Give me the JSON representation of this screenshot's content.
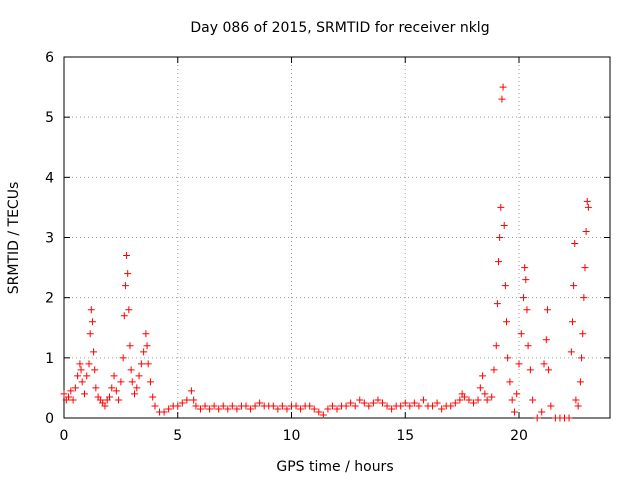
{
  "chart_data": {
    "type": "scatter",
    "title": "Day 086 of 2015, SRMTID for receiver nklg",
    "xlabel": "GPS time / hours",
    "ylabel": "SRMTID / TECUs",
    "xlim": [
      0,
      24
    ],
    "ylim": [
      0,
      6
    ],
    "xticks": [
      0,
      5,
      10,
      15,
      20
    ],
    "yticks": [
      0,
      1,
      2,
      3,
      4,
      5,
      6
    ],
    "grid": true,
    "marker": "+",
    "color": "#ff0000",
    "series": [
      {
        "name": "SRMTID",
        "points": [
          [
            0.0,
            0.4
          ],
          [
            0.1,
            0.3
          ],
          [
            0.2,
            0.35
          ],
          [
            0.3,
            0.45
          ],
          [
            0.4,
            0.3
          ],
          [
            0.5,
            0.5
          ],
          [
            0.6,
            0.7
          ],
          [
            0.7,
            0.9
          ],
          [
            0.75,
            0.8
          ],
          [
            0.8,
            0.6
          ],
          [
            0.9,
            0.4
          ],
          [
            1.0,
            0.7
          ],
          [
            1.1,
            0.9
          ],
          [
            1.15,
            1.4
          ],
          [
            1.2,
            1.8
          ],
          [
            1.25,
            1.6
          ],
          [
            1.3,
            1.1
          ],
          [
            1.35,
            0.8
          ],
          [
            1.4,
            0.5
          ],
          [
            1.5,
            0.35
          ],
          [
            1.6,
            0.3
          ],
          [
            1.7,
            0.25
          ],
          [
            1.8,
            0.2
          ],
          [
            1.9,
            0.3
          ],
          [
            2.0,
            0.35
          ],
          [
            2.1,
            0.5
          ],
          [
            2.2,
            0.7
          ],
          [
            2.3,
            0.45
          ],
          [
            2.4,
            0.3
          ],
          [
            2.5,
            0.6
          ],
          [
            2.6,
            1.0
          ],
          [
            2.65,
            1.7
          ],
          [
            2.7,
            2.2
          ],
          [
            2.75,
            2.7
          ],
          [
            2.8,
            2.4
          ],
          [
            2.85,
            1.8
          ],
          [
            2.9,
            1.2
          ],
          [
            2.95,
            0.8
          ],
          [
            3.0,
            0.6
          ],
          [
            3.1,
            0.4
          ],
          [
            3.2,
            0.5
          ],
          [
            3.3,
            0.7
          ],
          [
            3.4,
            0.9
          ],
          [
            3.5,
            1.1
          ],
          [
            3.6,
            1.4
          ],
          [
            3.65,
            1.2
          ],
          [
            3.7,
            0.9
          ],
          [
            3.8,
            0.6
          ],
          [
            3.9,
            0.35
          ],
          [
            4.0,
            0.2
          ],
          [
            4.2,
            0.1
          ],
          [
            4.4,
            0.1
          ],
          [
            4.6,
            0.15
          ],
          [
            4.8,
            0.2
          ],
          [
            5.0,
            0.2
          ],
          [
            5.2,
            0.25
          ],
          [
            5.4,
            0.3
          ],
          [
            5.6,
            0.45
          ],
          [
            5.7,
            0.3
          ],
          [
            5.8,
            0.2
          ],
          [
            6.0,
            0.15
          ],
          [
            6.2,
            0.2
          ],
          [
            6.4,
            0.15
          ],
          [
            6.6,
            0.2
          ],
          [
            6.8,
            0.15
          ],
          [
            7.0,
            0.2
          ],
          [
            7.2,
            0.15
          ],
          [
            7.4,
            0.2
          ],
          [
            7.6,
            0.15
          ],
          [
            7.8,
            0.2
          ],
          [
            8.0,
            0.2
          ],
          [
            8.2,
            0.15
          ],
          [
            8.4,
            0.2
          ],
          [
            8.6,
            0.25
          ],
          [
            8.8,
            0.2
          ],
          [
            9.0,
            0.2
          ],
          [
            9.2,
            0.2
          ],
          [
            9.4,
            0.15
          ],
          [
            9.6,
            0.2
          ],
          [
            9.8,
            0.15
          ],
          [
            10.0,
            0.2
          ],
          [
            10.2,
            0.2
          ],
          [
            10.4,
            0.15
          ],
          [
            10.6,
            0.2
          ],
          [
            10.8,
            0.2
          ],
          [
            11.0,
            0.15
          ],
          [
            11.2,
            0.1
          ],
          [
            11.4,
            0.05
          ],
          [
            11.6,
            0.15
          ],
          [
            11.8,
            0.2
          ],
          [
            12.0,
            0.15
          ],
          [
            12.2,
            0.2
          ],
          [
            12.4,
            0.2
          ],
          [
            12.6,
            0.25
          ],
          [
            12.8,
            0.2
          ],
          [
            13.0,
            0.3
          ],
          [
            13.2,
            0.25
          ],
          [
            13.4,
            0.2
          ],
          [
            13.6,
            0.25
          ],
          [
            13.8,
            0.3
          ],
          [
            14.0,
            0.25
          ],
          [
            14.2,
            0.2
          ],
          [
            14.4,
            0.15
          ],
          [
            14.6,
            0.2
          ],
          [
            14.8,
            0.2
          ],
          [
            15.0,
            0.25
          ],
          [
            15.2,
            0.2
          ],
          [
            15.4,
            0.25
          ],
          [
            15.6,
            0.2
          ],
          [
            15.8,
            0.3
          ],
          [
            16.0,
            0.2
          ],
          [
            16.2,
            0.2
          ],
          [
            16.4,
            0.25
          ],
          [
            16.6,
            0.15
          ],
          [
            16.8,
            0.2
          ],
          [
            17.0,
            0.2
          ],
          [
            17.2,
            0.25
          ],
          [
            17.4,
            0.3
          ],
          [
            17.5,
            0.4
          ],
          [
            17.6,
            0.35
          ],
          [
            17.8,
            0.3
          ],
          [
            18.0,
            0.25
          ],
          [
            18.2,
            0.3
          ],
          [
            18.3,
            0.5
          ],
          [
            18.4,
            0.7
          ],
          [
            18.5,
            0.4
          ],
          [
            18.6,
            0.3
          ],
          [
            18.8,
            0.35
          ],
          [
            18.9,
            0.8
          ],
          [
            19.0,
            1.2
          ],
          [
            19.05,
            1.9
          ],
          [
            19.1,
            2.6
          ],
          [
            19.15,
            3.0
          ],
          [
            19.2,
            3.5
          ],
          [
            19.25,
            5.3
          ],
          [
            19.3,
            5.5
          ],
          [
            19.35,
            3.2
          ],
          [
            19.4,
            2.2
          ],
          [
            19.45,
            1.6
          ],
          [
            19.5,
            1.0
          ],
          [
            19.6,
            0.6
          ],
          [
            19.7,
            0.3
          ],
          [
            19.8,
            0.1
          ],
          [
            19.9,
            0.4
          ],
          [
            20.0,
            0.9
          ],
          [
            20.1,
            1.4
          ],
          [
            20.2,
            2.0
          ],
          [
            20.25,
            2.5
          ],
          [
            20.3,
            2.3
          ],
          [
            20.35,
            1.8
          ],
          [
            20.4,
            1.2
          ],
          [
            20.5,
            0.8
          ],
          [
            20.6,
            0.3
          ],
          [
            20.8,
            0.0
          ],
          [
            21.0,
            0.1
          ],
          [
            21.1,
            0.9
          ],
          [
            21.2,
            1.3
          ],
          [
            21.25,
            1.8
          ],
          [
            21.3,
            0.8
          ],
          [
            21.4,
            0.2
          ],
          [
            21.6,
            0.0
          ],
          [
            21.8,
            0.0
          ],
          [
            22.0,
            0.0
          ],
          [
            22.2,
            0.0
          ],
          [
            22.3,
            1.1
          ],
          [
            22.35,
            1.6
          ],
          [
            22.4,
            2.2
          ],
          [
            22.45,
            2.9
          ],
          [
            22.5,
            0.3
          ],
          [
            22.6,
            0.2
          ],
          [
            22.7,
            0.6
          ],
          [
            22.75,
            1.0
          ],
          [
            22.8,
            1.4
          ],
          [
            22.85,
            2.0
          ],
          [
            22.9,
            2.5
          ],
          [
            22.95,
            3.1
          ],
          [
            23.0,
            3.6
          ],
          [
            23.05,
            3.5
          ]
        ]
      }
    ]
  }
}
